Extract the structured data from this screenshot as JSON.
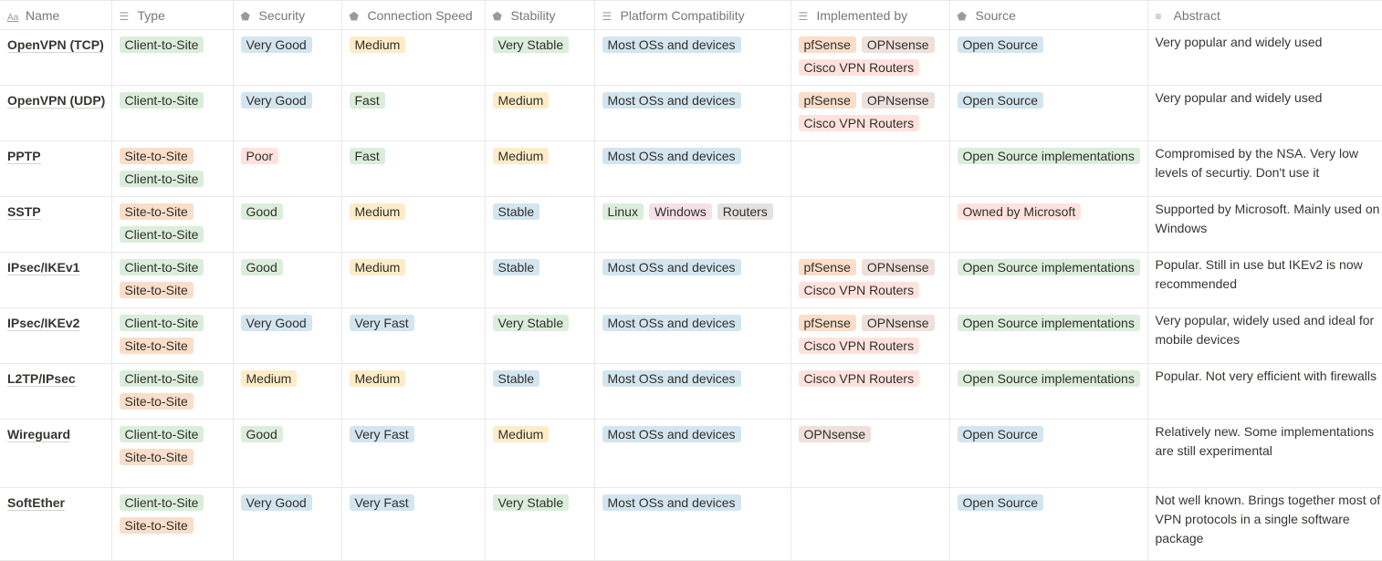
{
  "colors": {
    "green": "#dbeddb",
    "blue": "#d3e5ef",
    "yellow": "#fdecc8",
    "orange": "#fadec9",
    "brown": "#eee0da",
    "red": "#ffe2dd",
    "pink": "#f5e0e9",
    "gray": "#e3e2e0"
  },
  "tag_colors": {
    "Client-to-Site": "green",
    "Site-to-Site": "orange",
    "Very Good": "blue",
    "Good": "green",
    "Poor": "red",
    "Medium": "yellow",
    "Fast": "green",
    "Very Fast": "blue",
    "Very Stable": "green",
    "Stable": "blue",
    "Most OSs and devices": "blue",
    "Linux": "green",
    "Windows": "pink",
    "Routers": "gray",
    "pfSense": "orange",
    "OPNsense": "brown",
    "Cisco VPN Routers": "red",
    "Open Source": "blue",
    "Open Source implementations": "green",
    "Owned by Microsoft": "red"
  },
  "columns": [
    {
      "label": "Name",
      "icon": "title-icon"
    },
    {
      "label": "Type",
      "icon": "multi-select-icon"
    },
    {
      "label": "Security",
      "icon": "select-icon"
    },
    {
      "label": "Connection Speed",
      "icon": "select-icon"
    },
    {
      "label": "Stability",
      "icon": "select-icon"
    },
    {
      "label": "Platform Compatibility",
      "icon": "multi-select-icon"
    },
    {
      "label": "Implemented by",
      "icon": "multi-select-icon"
    },
    {
      "label": "Source",
      "icon": "select-icon"
    },
    {
      "label": "Abstract",
      "icon": "text-icon"
    }
  ],
  "rows": [
    {
      "name": "OpenVPN (TCP)",
      "type": [
        "Client-to-Site"
      ],
      "security": [
        "Very Good"
      ],
      "speed": [
        "Medium"
      ],
      "stability": [
        "Very Stable"
      ],
      "platform": [
        "Most OSs and devices"
      ],
      "implemented": [
        "pfSense",
        "OPNsense",
        "Cisco VPN Routers"
      ],
      "source": [
        "Open Source"
      ],
      "abstract": "Very popular and widely used"
    },
    {
      "name": "OpenVPN (UDP)",
      "type": [
        "Client-to-Site"
      ],
      "security": [
        "Very Good"
      ],
      "speed": [
        "Fast"
      ],
      "stability": [
        "Medium"
      ],
      "platform": [
        "Most OSs and devices"
      ],
      "implemented": [
        "pfSense",
        "OPNsense",
        "Cisco VPN Routers"
      ],
      "source": [
        "Open Source"
      ],
      "abstract": "Very popular and widely used"
    },
    {
      "name": "PPTP",
      "type": [
        "Site-to-Site",
        "Client-to-Site"
      ],
      "security": [
        "Poor"
      ],
      "speed": [
        "Fast"
      ],
      "stability": [
        "Medium"
      ],
      "platform": [
        "Most OSs and devices"
      ],
      "implemented": [],
      "source": [
        "Open Source implementations"
      ],
      "abstract": "Compromised by the NSA. Very low levels of securtiy. Don't use it"
    },
    {
      "name": "SSTP",
      "type": [
        "Site-to-Site",
        "Client-to-Site"
      ],
      "security": [
        "Good"
      ],
      "speed": [
        "Medium"
      ],
      "stability": [
        "Stable"
      ],
      "platform": [
        "Linux",
        "Windows",
        "Routers"
      ],
      "implemented": [],
      "source": [
        "Owned by Microsoft"
      ],
      "abstract": "Supported by Microsoft. Mainly used on Windows"
    },
    {
      "name": "IPsec/IKEv1",
      "type": [
        "Client-to-Site",
        "Site-to-Site"
      ],
      "security": [
        "Good"
      ],
      "speed": [
        "Medium"
      ],
      "stability": [
        "Stable"
      ],
      "platform": [
        "Most OSs and devices"
      ],
      "implemented": [
        "pfSense",
        "OPNsense",
        "Cisco VPN Routers"
      ],
      "source": [
        "Open Source implementations"
      ],
      "abstract": "Popular. Still in use but IKEv2 is now recommended"
    },
    {
      "name": "IPsec/IKEv2",
      "type": [
        "Client-to-Site",
        "Site-to-Site"
      ],
      "security": [
        "Very Good"
      ],
      "speed": [
        "Very Fast"
      ],
      "stability": [
        "Very Stable"
      ],
      "platform": [
        "Most OSs and devices"
      ],
      "implemented": [
        "pfSense",
        "OPNsense",
        "Cisco VPN Routers"
      ],
      "source": [
        "Open Source implementations"
      ],
      "abstract": "Very popular, widely used and ideal for mobile devices"
    },
    {
      "name": "L2TP/IPsec",
      "type": [
        "Client-to-Site",
        "Site-to-Site"
      ],
      "security": [
        "Medium"
      ],
      "speed": [
        "Medium"
      ],
      "stability": [
        "Stable"
      ],
      "platform": [
        "Most OSs and devices"
      ],
      "implemented": [
        "Cisco VPN Routers"
      ],
      "source": [
        "Open Source implementations"
      ],
      "abstract": "Popular. Not very efficient with firewalls"
    },
    {
      "name": "Wireguard",
      "type": [
        "Client-to-Site",
        "Site-to-Site"
      ],
      "security": [
        "Good"
      ],
      "speed": [
        "Very Fast"
      ],
      "stability": [
        "Medium"
      ],
      "platform": [
        "Most OSs and devices"
      ],
      "implemented": [
        "OPNsense"
      ],
      "source": [
        "Open Source"
      ],
      "abstract": "Relatively new. Some implementations are still experimental"
    },
    {
      "name": "SoftEther",
      "type": [
        "Client-to-Site",
        "Site-to-Site"
      ],
      "security": [
        "Very Good"
      ],
      "speed": [
        "Very Fast"
      ],
      "stability": [
        "Very Stable"
      ],
      "platform": [
        "Most OSs and devices"
      ],
      "implemented": [],
      "source": [
        "Open Source"
      ],
      "abstract": "Not well known. Brings together most of VPN protocols in a single software package"
    }
  ]
}
